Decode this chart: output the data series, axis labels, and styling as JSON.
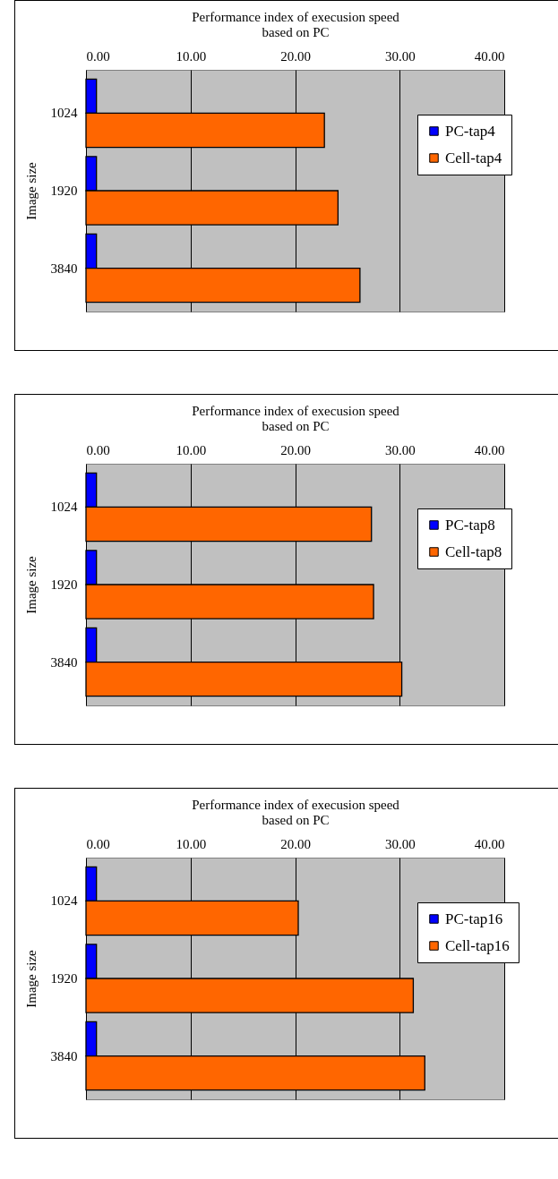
{
  "chart_data": [
    {
      "type": "bar",
      "orientation": "horizontal",
      "xlabel": "Performance index of execusion speed\nbased on PC",
      "ylabel": "Image size",
      "categories": [
        "1024",
        "1920",
        "3840"
      ],
      "series": [
        {
          "name": "PC-tap4",
          "color": "#0000ff",
          "values": [
            1.0,
            1.0,
            1.0
          ]
        },
        {
          "name": "Cell-tap4",
          "color": "#ff6600",
          "values": [
            22.8,
            24.1,
            26.2
          ]
        }
      ],
      "xlim": [
        0,
        40
      ],
      "xticks": [
        {
          "value": 0,
          "label": "0.00"
        },
        {
          "value": 10,
          "label": "10.00"
        },
        {
          "value": 20,
          "label": "20.00"
        },
        {
          "value": 30,
          "label": "30.00"
        },
        {
          "value": 40,
          "label": "40.00"
        }
      ],
      "grid": "x",
      "legend": "right"
    },
    {
      "type": "bar",
      "orientation": "horizontal",
      "xlabel": "Performance index of execusion speed\nbased on PC",
      "ylabel": "Image size",
      "categories": [
        "1024",
        "1920",
        "3840"
      ],
      "series": [
        {
          "name": "PC-tap8",
          "color": "#0000ff",
          "values": [
            1.0,
            1.0,
            1.0
          ]
        },
        {
          "name": "Cell-tap8",
          "color": "#ff6600",
          "values": [
            27.3,
            27.5,
            30.2
          ]
        }
      ],
      "xlim": [
        0,
        40
      ],
      "xticks": [
        {
          "value": 0,
          "label": "0.00"
        },
        {
          "value": 10,
          "label": "10.00"
        },
        {
          "value": 20,
          "label": "20.00"
        },
        {
          "value": 30,
          "label": "30.00"
        },
        {
          "value": 40,
          "label": "40.00"
        }
      ],
      "grid": "x",
      "legend": "right"
    },
    {
      "type": "bar",
      "orientation": "horizontal",
      "xlabel": "Performance index of execusion speed\nbased on PC",
      "ylabel": "Image size",
      "categories": [
        "1024",
        "1920",
        "3840"
      ],
      "series": [
        {
          "name": "PC-tap16",
          "color": "#0000ff",
          "values": [
            1.0,
            1.0,
            1.0
          ]
        },
        {
          "name": "Cell-tap16",
          "color": "#ff6600",
          "values": [
            20.3,
            31.3,
            32.4
          ]
        }
      ],
      "xlim": [
        0,
        40
      ],
      "xticks": [
        {
          "value": 0,
          "label": "0.00"
        },
        {
          "value": 10,
          "label": "10.00"
        },
        {
          "value": 20,
          "label": "20.00"
        },
        {
          "value": 30,
          "label": "30.00"
        },
        {
          "value": 40,
          "label": "40.00"
        }
      ],
      "grid": "x",
      "legend": "right"
    }
  ]
}
